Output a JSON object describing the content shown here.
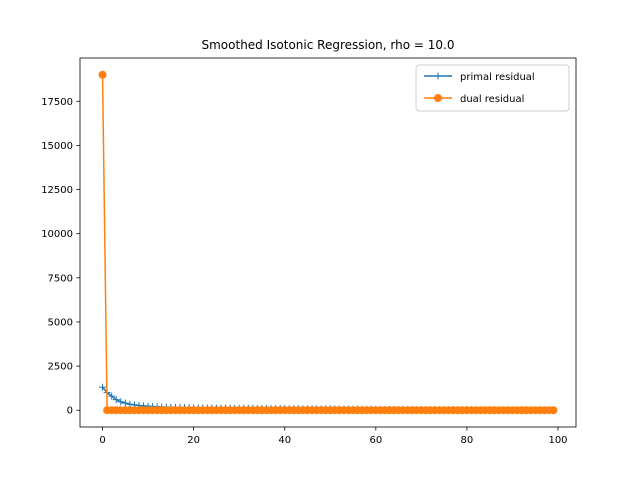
{
  "chart_data": {
    "type": "line",
    "title": "Smoothed Isotonic Regression, rho = 10.0",
    "xlabel": "",
    "ylabel": "",
    "xlim": [
      -4.95,
      103.95
    ],
    "ylim": [
      -950,
      19950
    ],
    "xticks": [
      0,
      20,
      40,
      60,
      80,
      100
    ],
    "yticks": [
      0,
      2500,
      5000,
      7500,
      10000,
      12500,
      15000,
      17500
    ],
    "xtick_labels": [
      "0",
      "20",
      "40",
      "60",
      "80",
      "100"
    ],
    "ytick_labels": [
      "0",
      "2500",
      "5000",
      "7500",
      "10000",
      "12500",
      "15000",
      "17500"
    ],
    "grid": false,
    "legend_position": "top-right",
    "series": [
      {
        "name": "primal residual",
        "color": "#1f77b4",
        "marker": "plus",
        "x": [
          0,
          1,
          2,
          3,
          4,
          5,
          6,
          7,
          8,
          9,
          10,
          11,
          12,
          13,
          14,
          15,
          16,
          17,
          18,
          19,
          20,
          21,
          22,
          23,
          24,
          25,
          26,
          27,
          28,
          29,
          30,
          31,
          32,
          33,
          34,
          35,
          36,
          37,
          38,
          39,
          40,
          41,
          42,
          43,
          44,
          45,
          46,
          47,
          48,
          49,
          50,
          51,
          52,
          53,
          54,
          55,
          56,
          57,
          58,
          59,
          60,
          61,
          62,
          63,
          64,
          65,
          66,
          67,
          68,
          69,
          70,
          71,
          72,
          73,
          74,
          75,
          76,
          77,
          78,
          79,
          80,
          81,
          82,
          83,
          84,
          85,
          86,
          87,
          88,
          89,
          90,
          91,
          92,
          93,
          94,
          95,
          96,
          97,
          98,
          99
        ],
        "values": [
          1300,
          1000,
          800,
          600,
          480,
          400,
          340,
          300,
          270,
          245,
          225,
          210,
          195,
          185,
          175,
          168,
          160,
          155,
          150,
          145,
          140,
          136,
          132,
          128,
          125,
          122,
          119,
          116,
          113,
          111,
          108,
          106,
          104,
          102,
          100,
          98,
          96,
          94,
          92,
          90,
          88,
          86,
          84,
          82,
          80,
          78,
          76,
          74,
          72,
          70,
          68,
          66,
          64,
          62,
          60,
          58,
          56,
          54,
          52,
          50,
          48,
          46,
          44,
          42,
          40,
          38,
          36,
          34,
          32,
          30,
          29,
          28,
          27,
          26,
          25,
          24,
          23,
          22,
          21,
          20,
          19,
          18,
          17,
          16,
          15,
          14,
          13,
          12,
          11,
          10,
          9,
          8,
          7,
          6,
          5,
          4,
          3,
          2,
          1,
          0
        ]
      },
      {
        "name": "dual residual",
        "color": "#ff7f0e",
        "marker": "circle",
        "x": [
          0,
          1,
          2,
          3,
          4,
          5,
          6,
          7,
          8,
          9,
          10,
          11,
          12,
          13,
          14,
          15,
          16,
          17,
          18,
          19,
          20,
          21,
          22,
          23,
          24,
          25,
          26,
          27,
          28,
          29,
          30,
          31,
          32,
          33,
          34,
          35,
          36,
          37,
          38,
          39,
          40,
          41,
          42,
          43,
          44,
          45,
          46,
          47,
          48,
          49,
          50,
          51,
          52,
          53,
          54,
          55,
          56,
          57,
          58,
          59,
          60,
          61,
          62,
          63,
          64,
          65,
          66,
          67,
          68,
          69,
          70,
          71,
          72,
          73,
          74,
          75,
          76,
          77,
          78,
          79,
          80,
          81,
          82,
          83,
          84,
          85,
          86,
          87,
          88,
          89,
          90,
          91,
          92,
          93,
          94,
          95,
          96,
          97,
          98,
          99
        ],
        "values": [
          19000,
          0,
          0,
          0,
          0,
          0,
          0,
          0,
          0,
          0,
          0,
          0,
          0,
          0,
          0,
          0,
          0,
          0,
          0,
          0,
          0,
          0,
          0,
          0,
          0,
          0,
          0,
          0,
          0,
          0,
          0,
          0,
          0,
          0,
          0,
          0,
          0,
          0,
          0,
          0,
          0,
          0,
          0,
          0,
          0,
          0,
          0,
          0,
          0,
          0,
          0,
          0,
          0,
          0,
          0,
          0,
          0,
          0,
          0,
          0,
          0,
          0,
          0,
          0,
          0,
          0,
          0,
          0,
          0,
          0,
          0,
          0,
          0,
          0,
          0,
          0,
          0,
          0,
          0,
          0,
          0,
          0,
          0,
          0,
          0,
          0,
          0,
          0,
          0,
          0,
          0,
          0,
          0,
          0,
          0,
          0,
          0,
          0,
          0,
          0
        ]
      }
    ]
  }
}
